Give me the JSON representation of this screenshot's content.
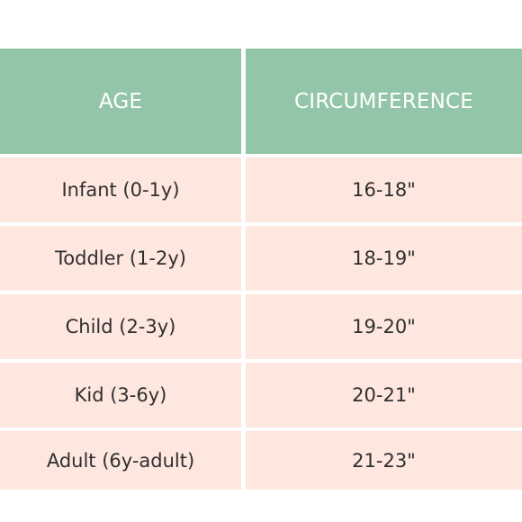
{
  "table": {
    "headers": {
      "age": "AGE",
      "circumference": "CIRCUMFERENCE"
    },
    "rows": [
      {
        "age": "Infant (0-1y)",
        "circumference": "16-18\""
      },
      {
        "age": "Toddler (1-2y)",
        "circumference": "18-19\""
      },
      {
        "age": "Child (2-3y)",
        "circumference": "19-20\""
      },
      {
        "age": "Kid (3-6y)",
        "circumference": "20-21\""
      },
      {
        "age": "Adult (6y-adult)",
        "circumference": "21-23\""
      }
    ]
  },
  "colors": {
    "header_background": "#93c6a8",
    "header_text": "#ffffff",
    "row_background": "#fde7df",
    "row_text": "#2f2f2f",
    "divider": "#ffffff"
  }
}
